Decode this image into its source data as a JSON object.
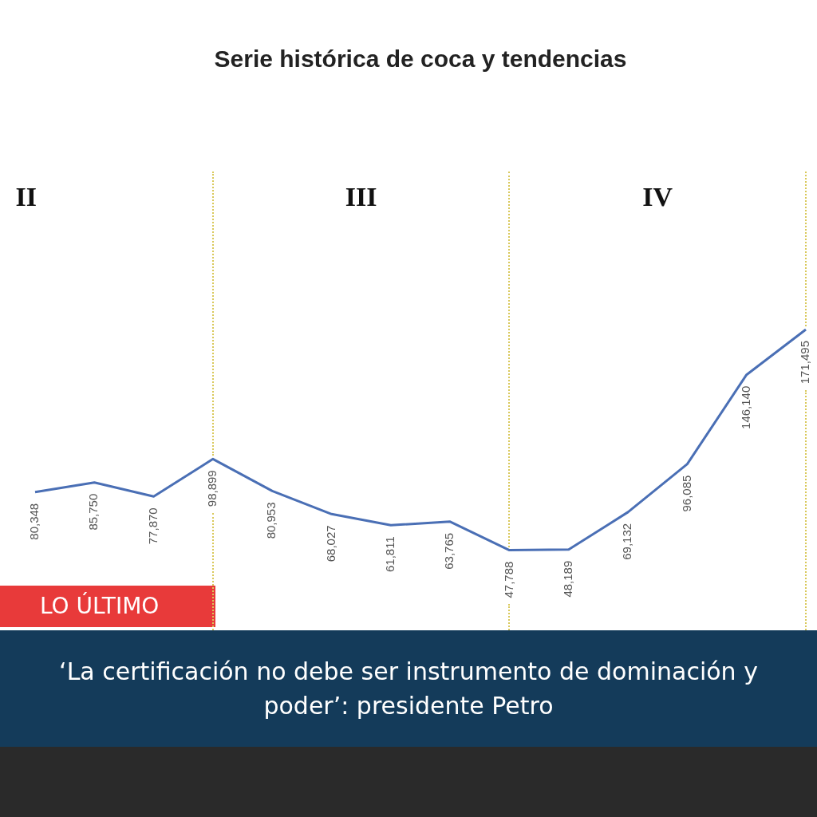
{
  "chart_data": {
    "type": "line",
    "title": "Serie histórica de coca y tendencias",
    "categories": [
      null,
      null,
      null,
      null,
      null,
      null,
      null,
      null,
      null,
      null,
      null,
      null,
      null,
      null
    ],
    "series": [
      {
        "color": "#4a6fb5",
        "values": [
          80348,
          85750,
          77870,
          98899,
          80953,
          68027,
          61811,
          63765,
          47788,
          48189,
          69132,
          96085,
          146140,
          171495
        ],
        "value_labels": [
          "80,348",
          "85,750",
          "77,870",
          "98,899",
          "80,953",
          "68,027",
          "61,811",
          "63,765",
          "47,788",
          "48,189",
          "69,132",
          "96,085",
          "146,140",
          "171,495"
        ]
      }
    ],
    "annotations": [
      "II",
      "III",
      "IV",
      "LO ÚLTIMO",
      "‘La certificación no debe ser instrumento de dominación y poder’: presidente Petro"
    ],
    "tick_labels": false,
    "grid": "x",
    "legend": false,
    "marker": "none",
    "line_style": "solid"
  }
}
